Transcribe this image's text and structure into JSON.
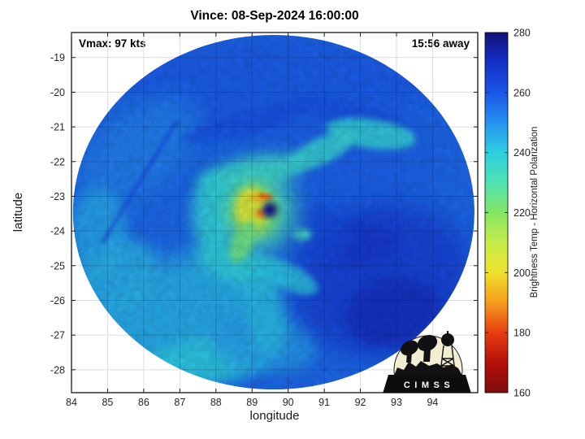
{
  "figure": {
    "logo_text": "CIMSS"
  },
  "chart_data": {
    "type": "heatmap",
    "title": "Vince: 08-Sep-2024 16:00:00",
    "xlabel": "longitude",
    "ylabel": "latitude",
    "xlim": [
      84,
      95.25
    ],
    "ylim": [
      -28.66,
      -18.28
    ],
    "xticks": [
      84,
      85,
      86,
      87,
      88,
      89,
      90,
      91,
      92,
      93,
      94
    ],
    "yticks": [
      -19,
      -20,
      -21,
      -22,
      -23,
      -24,
      -25,
      -26,
      -27,
      -28
    ],
    "grid": true,
    "annotations": [
      {
        "text": "Vmax: 97 kts",
        "position": "top-left"
      },
      {
        "text": "15:56 away",
        "position": "top-right"
      }
    ],
    "storm": {
      "name": "Vince",
      "datetime": "08-Sep-2024 16:00:00",
      "vmax_kts": 97,
      "time_offset": "15:56",
      "eye_lon": 89.49,
      "eye_lat": -23.39
    },
    "colorbar": {
      "label": "Brightness Temp - Horizontal Polarization",
      "min": 160,
      "max": 280,
      "ticks": [
        160,
        180,
        200,
        220,
        240,
        260,
        280
      ],
      "position": "right",
      "colormap": [
        {
          "t": 160,
          "c": "#7e0c10"
        },
        {
          "t": 170,
          "c": "#b41009"
        },
        {
          "t": 180,
          "c": "#e83d10"
        },
        {
          "t": 190,
          "c": "#f59c1c"
        },
        {
          "t": 200,
          "c": "#f0e22c"
        },
        {
          "t": 210,
          "c": "#c6ec48"
        },
        {
          "t": 220,
          "c": "#84e663"
        },
        {
          "t": 230,
          "c": "#4fe2b4"
        },
        {
          "t": 240,
          "c": "#2ecfe2"
        },
        {
          "t": 250,
          "c": "#2492f0"
        },
        {
          "t": 260,
          "c": "#1a55e8"
        },
        {
          "t": 270,
          "c": "#1430c8"
        },
        {
          "t": 280,
          "c": "#131178"
        }
      ]
    },
    "swath": {
      "center_lon": 89.6,
      "center_lat": -23.46,
      "rx_deg": 5.56,
      "ry_deg": 5.11,
      "background_temp": 257
    },
    "seam": {
      "lon1": 86.93,
      "lat1": -20.81,
      "lon2": 84.86,
      "lat2": -24.33,
      "temp": 267
    },
    "features": [
      {
        "name": "north-shield",
        "lon": 89.78,
        "lat": -19.85,
        "rx": 4.3,
        "ry": 1.35,
        "rot": 0,
        "temp": 259,
        "op": 0.85
      },
      {
        "name": "east-field",
        "lon": 91.5,
        "lat": -22.2,
        "rx": 2.6,
        "ry": 1.8,
        "rot": -20,
        "temp": 258,
        "op": 0.8
      },
      {
        "name": "nw-band",
        "lon": 85.85,
        "lat": -21.7,
        "rx": 2.0,
        "ry": 1.15,
        "rot": -40,
        "temp": 253,
        "op": 0.85
      },
      {
        "name": "west-edge-band",
        "lon": 84.75,
        "lat": -24.1,
        "rx": 0.8,
        "ry": 1.35,
        "rot": 0,
        "temp": 247,
        "op": 0.9
      },
      {
        "name": "sw-cold-region",
        "lon": 86.9,
        "lat": -26.55,
        "rx": 2.6,
        "ry": 1.7,
        "rot": -30,
        "temp": 245,
        "op": 0.9
      },
      {
        "name": "sw-cold-patch",
        "lon": 85.25,
        "lat": -25.4,
        "rx": 1.3,
        "ry": 0.95,
        "rot": -40,
        "temp": 245,
        "op": 0.85
      },
      {
        "name": "south-cold-band",
        "lon": 87.8,
        "lat": -27.75,
        "rx": 1.95,
        "ry": 0.7,
        "rot": -10,
        "temp": 241,
        "op": 0.9
      },
      {
        "name": "south-field",
        "lon": 89.3,
        "lat": -27.2,
        "rx": 1.5,
        "ry": 0.85,
        "rot": 10,
        "temp": 248,
        "op": 0.8
      },
      {
        "name": "se-warm-region",
        "lon": 92.6,
        "lat": -25.4,
        "rx": 2.5,
        "ry": 2.15,
        "rot": -15,
        "temp": 266,
        "op": 0.85
      },
      {
        "name": "se-warm-core",
        "lon": 92.9,
        "lat": -26.35,
        "rx": 1.3,
        "ry": 1.0,
        "rot": -10,
        "temp": 271,
        "op": 0.85
      },
      {
        "name": "se-warm-core-2",
        "lon": 92.1,
        "lat": -24.4,
        "rx": 0.95,
        "ry": 0.7,
        "rot": 0,
        "temp": 268,
        "op": 0.8
      },
      {
        "name": "inner-warm-streak",
        "lon": 90.6,
        "lat": -23.95,
        "rx": 1.2,
        "ry": 0.75,
        "rot": 20,
        "temp": 263,
        "op": 0.7
      },
      {
        "name": "north-dark-streak",
        "lon": 88.8,
        "lat": -20.9,
        "rx": 1.8,
        "ry": 0.35,
        "rot": -15,
        "temp": 262,
        "op": 0.6
      },
      {
        "name": "north-dark-streak-2",
        "lon": 91.7,
        "lat": -20.6,
        "rx": 1.6,
        "ry": 0.3,
        "rot": 12,
        "temp": 262,
        "op": 0.6
      },
      {
        "name": "rainband-ne",
        "lon": 92.3,
        "lat": -21.2,
        "rx": 1.25,
        "ry": 0.42,
        "rot": 8,
        "temp": 238,
        "op": 0.85
      },
      {
        "name": "rainband-ne-2",
        "lon": 90.9,
        "lat": -21.7,
        "rx": 1.0,
        "ry": 0.37,
        "rot": -25,
        "temp": 237,
        "op": 0.85
      },
      {
        "name": "rainband-north-inner",
        "lon": 89.0,
        "lat": -22.35,
        "rx": 1.5,
        "ry": 0.5,
        "rot": -12,
        "temp": 236,
        "op": 0.9
      },
      {
        "name": "rainband-west-inner",
        "lon": 87.95,
        "lat": -23.5,
        "rx": 0.62,
        "ry": 1.15,
        "rot": 0,
        "temp": 239,
        "op": 0.9
      },
      {
        "name": "rainband-south-inner",
        "lon": 88.65,
        "lat": -25.0,
        "rx": 1.25,
        "ry": 0.5,
        "rot": 18,
        "temp": 239,
        "op": 0.9
      },
      {
        "name": "rainband-sse",
        "lon": 89.95,
        "lat": -25.3,
        "rx": 0.95,
        "ry": 0.37,
        "rot": 25,
        "temp": 242,
        "op": 0.85
      },
      {
        "name": "rainband-south",
        "lon": 89.35,
        "lat": -26.3,
        "rx": 0.55,
        "ry": 1.25,
        "rot": -10,
        "temp": 243,
        "op": 0.85
      },
      {
        "name": "cold-blob-se-of-eye",
        "lon": 90.4,
        "lat": -24.1,
        "rx": 0.25,
        "ry": 0.17,
        "rot": 0,
        "temp": 234,
        "op": 0.9
      },
      {
        "name": "eyewall-cyan-ring",
        "lon": 89.2,
        "lat": -23.45,
        "rx": 1.05,
        "ry": 1.15,
        "rot": 0,
        "temp": 233,
        "op": 0.9
      },
      {
        "name": "eyewall-outer",
        "lon": 89.05,
        "lat": -23.42,
        "rx": 0.62,
        "ry": 0.78,
        "rot": 0,
        "temp": 216,
        "op": 0.95
      },
      {
        "name": "eyewall-yellow",
        "lon": 88.98,
        "lat": -23.35,
        "rx": 0.42,
        "ry": 0.58,
        "rot": 0,
        "temp": 205,
        "op": 0.95
      },
      {
        "name": "eyewall-orange-north",
        "lon": 89.15,
        "lat": -23.05,
        "rx": 0.24,
        "ry": 0.13,
        "rot": 10,
        "temp": 196,
        "op": 0.95
      },
      {
        "name": "eyewall-red-streak",
        "lon": 89.37,
        "lat": -23.0,
        "rx": 0.2,
        "ry": 0.08,
        "rot": 12,
        "temp": 184,
        "op": 0.95
      },
      {
        "name": "eyewall-red-spot",
        "lon": 89.24,
        "lat": -23.5,
        "rx": 0.12,
        "ry": 0.14,
        "rot": 0,
        "temp": 188,
        "op": 0.95
      },
      {
        "name": "eyewall-green-tail",
        "lon": 88.75,
        "lat": -24.3,
        "rx": 0.3,
        "ry": 0.65,
        "rot": 25,
        "temp": 224,
        "op": 0.9
      },
      {
        "name": "eye",
        "lon": 89.49,
        "lat": -23.39,
        "rx": 0.21,
        "ry": 0.22,
        "rot": 0,
        "temp": 278,
        "op": 1
      }
    ]
  }
}
